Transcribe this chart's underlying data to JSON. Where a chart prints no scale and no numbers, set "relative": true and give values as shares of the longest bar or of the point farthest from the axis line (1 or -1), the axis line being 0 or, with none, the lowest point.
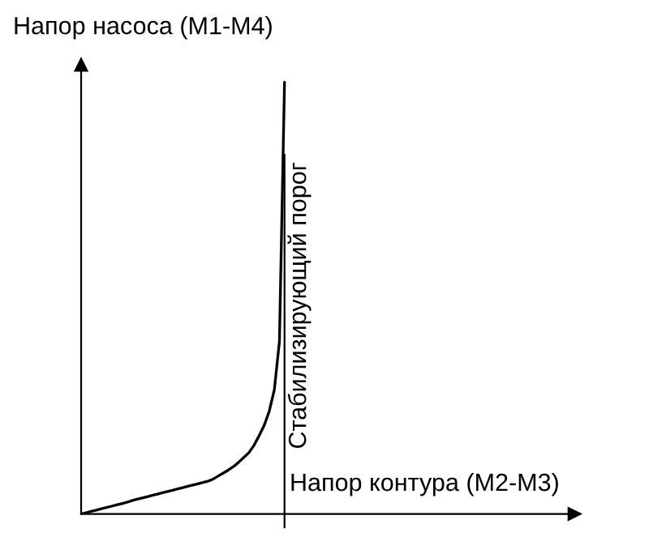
{
  "chart_data": {
    "type": "line",
    "relative": true,
    "xlabel": "Напор контура (M2-M3)",
    "ylabel": "Напор насоса (M1-M4)",
    "categories": [
      null,
      null,
      null,
      null,
      null,
      null,
      null,
      null,
      null,
      null,
      null,
      null,
      null,
      null,
      null,
      null,
      null,
      null,
      null,
      null,
      null,
      null,
      null,
      null,
      null,
      null,
      null,
      null,
      null,
      null,
      null,
      null,
      null,
      null,
      null,
      null,
      null,
      null,
      null,
      null,
      null,
      null,
      null,
      null,
      null,
      null,
      null,
      null,
      null,
      null,
      null,
      null,
      null,
      null,
      null,
      null,
      null,
      null,
      null,
      null,
      null,
      null,
      null,
      null,
      null,
      null,
      null,
      null,
      null,
      null,
      null,
      null,
      null,
      null,
      null,
      null,
      null,
      null,
      null,
      null,
      null,
      null,
      null,
      null,
      null,
      null,
      null,
      null,
      null,
      null,
      null,
      null,
      null,
      null,
      null,
      null,
      null,
      null
    ],
    "series": [
      {
        "color": "#000000",
        "values": [
          0,
          0.003,
          0.006,
          0.009,
          0.012,
          0.015,
          0.018,
          0.021,
          0.024,
          0.027,
          0.031,
          0.034,
          0.037,
          0.04,
          0.043,
          0.046,
          0.049,
          0.052,
          0.055,
          0.058,
          0.061,
          0.064,
          0.067,
          0.07,
          0.073,
          0.076,
          0.081,
          0.088,
          0.095,
          0.102,
          0.11,
          0.12,
          0.131,
          0.142,
          0.159,
          0.181,
          0.205,
          0.238,
          0.288,
          0.4,
          1.0,
          null,
          null,
          null,
          null,
          null,
          null,
          null,
          null,
          null,
          null,
          null,
          null,
          null,
          null,
          null,
          null,
          null,
          null,
          null,
          null,
          null,
          null,
          null,
          null,
          null,
          null,
          null,
          null,
          null,
          null,
          null,
          null,
          null,
          null,
          null,
          null,
          null,
          null,
          null,
          null,
          null,
          null,
          null,
          null,
          null,
          null,
          null,
          null,
          null,
          null,
          null,
          null,
          null,
          null,
          null,
          null,
          null
        ]
      }
    ],
    "annotations": [
      "Стабилизирующий порог"
    ],
    "marker": "none",
    "line_style": "solid"
  }
}
